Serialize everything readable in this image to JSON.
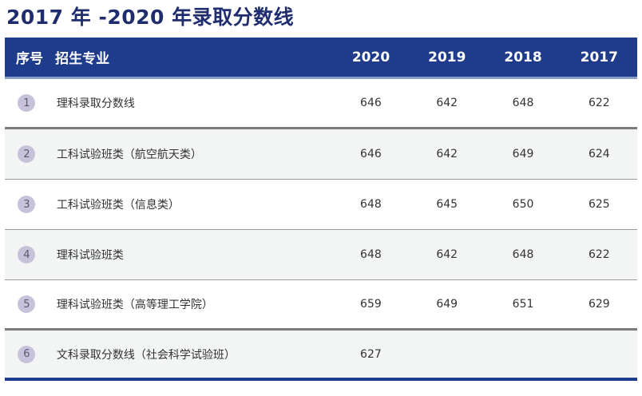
{
  "title": "2017 年 -2020 年录取分数线",
  "header": {
    "index": "序号",
    "major": "招生专业",
    "years": [
      "2020",
      "2019",
      "2018",
      "2017"
    ]
  },
  "rows": [
    {
      "idx": "1",
      "name": "理科录取分数线",
      "scores": [
        "646",
        "642",
        "648",
        "622"
      ]
    },
    {
      "idx": "2",
      "name": "工科试验班类（航空航天类）",
      "scores": [
        "646",
        "642",
        "649",
        "624"
      ]
    },
    {
      "idx": "3",
      "name": "工科试验班类（信息类）",
      "scores": [
        "648",
        "645",
        "650",
        "625"
      ]
    },
    {
      "idx": "4",
      "name": "理科试验班类",
      "scores": [
        "648",
        "642",
        "648",
        "622"
      ]
    },
    {
      "idx": "5",
      "name": "理科试验班类（高等理工学院）",
      "scores": [
        "659",
        "649",
        "651",
        "629"
      ]
    },
    {
      "idx": "6",
      "name": "文科录取分数线（社会科学试验班）",
      "scores": [
        "627",
        "",
        "",
        ""
      ]
    }
  ],
  "colors": {
    "header_bg": "#1e3b8c",
    "title": "#1f2d6e",
    "badge": "#c7c2d9",
    "alt_row": "#f2f5f4"
  }
}
